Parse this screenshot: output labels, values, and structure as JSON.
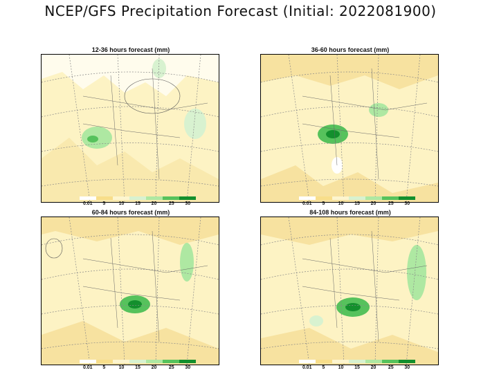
{
  "title": "NCEP/GFS Precipitation Forecast (Initial: 2022081900)",
  "colorbar": {
    "labels": [
      "0.01",
      "5",
      "10",
      "15",
      "20",
      "25",
      "30"
    ],
    "colors": [
      "#ffffff",
      "#f8de8a",
      "#fdf5cf",
      "#d8f2d0",
      "#aee8a2",
      "#56c25c",
      "#138f2d"
    ]
  },
  "panels": [
    {
      "title": "12-36 hours forecast (mm)"
    },
    {
      "title": "36-60 hours forecast (mm)"
    },
    {
      "title": "60-84 hours forecast (mm)"
    },
    {
      "title": "84-108 hours forecast (mm)"
    }
  ]
}
